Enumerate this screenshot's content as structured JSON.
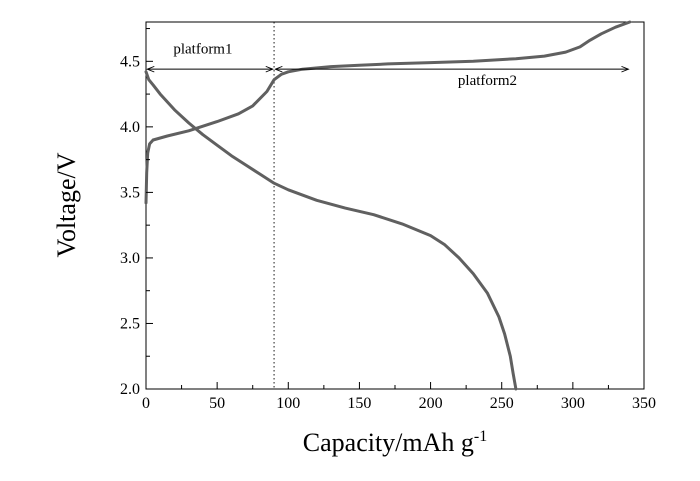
{
  "chart_data": {
    "type": "line",
    "title": "",
    "xlabel": "Capacity/mAh g",
    "xlabel_superscript": "-1",
    "ylabel": "Voltage/V",
    "xlim": [
      0,
      350
    ],
    "ylim": [
      2.0,
      4.8
    ],
    "x_ticks": [
      0,
      50,
      100,
      150,
      200,
      250,
      300,
      350
    ],
    "y_ticks": [
      2.0,
      2.5,
      3.0,
      3.5,
      4.0,
      4.5
    ],
    "x_tick_labels": [
      "0",
      "50",
      "100",
      "150",
      "200",
      "250",
      "300",
      "350"
    ],
    "y_tick_labels": [
      "2.0",
      "2.5",
      "3.0",
      "3.5",
      "4.0",
      "4.5"
    ],
    "grid": false,
    "series_color": "#606060",
    "series": [
      {
        "points": [
          [
            0,
            3.42
          ],
          [
            0.5,
            3.65
          ],
          [
            1.2,
            3.8
          ],
          [
            2.5,
            3.87
          ],
          [
            5,
            3.9
          ],
          [
            15,
            3.93
          ],
          [
            30,
            3.97
          ],
          [
            50,
            4.04
          ],
          [
            65,
            4.1
          ],
          [
            75,
            4.16
          ],
          [
            85,
            4.27
          ],
          [
            90,
            4.36
          ],
          [
            95,
            4.4
          ],
          [
            100,
            4.42
          ],
          [
            110,
            4.44
          ],
          [
            130,
            4.46
          ],
          [
            150,
            4.47
          ],
          [
            170,
            4.48
          ],
          [
            200,
            4.49
          ],
          [
            230,
            4.5
          ],
          [
            260,
            4.52
          ],
          [
            280,
            4.54
          ],
          [
            295,
            4.57
          ],
          [
            305,
            4.61
          ],
          [
            312,
            4.66
          ],
          [
            320,
            4.71
          ],
          [
            330,
            4.76
          ],
          [
            340,
            4.8
          ]
        ]
      },
      {
        "points": [
          [
            0,
            4.42
          ],
          [
            2,
            4.36
          ],
          [
            5,
            4.32
          ],
          [
            10,
            4.25
          ],
          [
            20,
            4.13
          ],
          [
            30,
            4.03
          ],
          [
            40,
            3.94
          ],
          [
            50,
            3.86
          ],
          [
            60,
            3.78
          ],
          [
            70,
            3.71
          ],
          [
            80,
            3.64
          ],
          [
            90,
            3.57
          ],
          [
            100,
            3.52
          ],
          [
            120,
            3.44
          ],
          [
            140,
            3.38
          ],
          [
            160,
            3.33
          ],
          [
            180,
            3.26
          ],
          [
            200,
            3.17
          ],
          [
            210,
            3.1
          ],
          [
            220,
            3.0
          ],
          [
            230,
            2.88
          ],
          [
            240,
            2.73
          ],
          [
            248,
            2.55
          ],
          [
            252,
            2.42
          ],
          [
            256,
            2.25
          ],
          [
            258,
            2.12
          ],
          [
            260,
            2.0
          ]
        ]
      }
    ],
    "reference_lines": [
      {
        "x": 90,
        "style": "dotted"
      }
    ],
    "annotations": [
      {
        "label": "platform1",
        "x_from": 0,
        "x_to": 90,
        "y": 4.44,
        "label_at": [
          40,
          4.56
        ]
      },
      {
        "label": "platform2",
        "x_from": 90,
        "x_to": 340,
        "y": 4.44,
        "label_at": [
          240,
          4.32
        ]
      }
    ]
  }
}
